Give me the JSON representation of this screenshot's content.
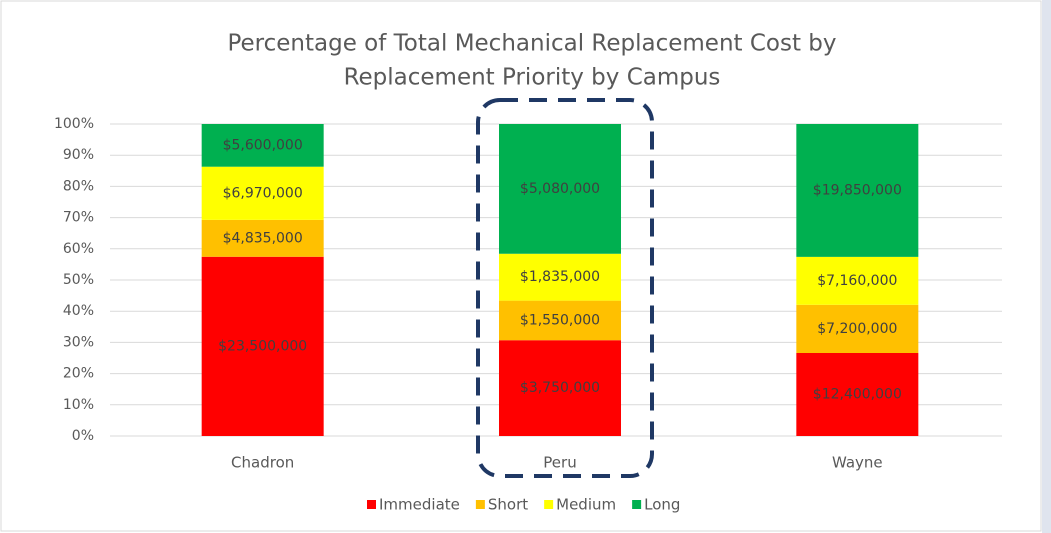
{
  "chart_data": {
    "type": "bar",
    "stacking": "percent",
    "title": [
      "Percentage of Total Mechanical Replacement Cost by",
      "Replacement Priority by Campus"
    ],
    "categories": [
      "Chadron",
      "Peru",
      "Wayne"
    ],
    "series": [
      {
        "name": "Immediate",
        "color": "#ff0000",
        "values": [
          23500000,
          3750000,
          12400000
        ],
        "value_labels": [
          "$23,500,000",
          "$3,750,000",
          "$12,400,000"
        ]
      },
      {
        "name": "Short",
        "color": "#ffc000",
        "values": [
          4835000,
          1550000,
          7200000
        ],
        "value_labels": [
          "$4,835,000",
          "$1,550,000",
          "$7,200,000"
        ]
      },
      {
        "name": "Medium",
        "color": "#ffff00",
        "values": [
          6970000,
          1835000,
          7160000
        ],
        "value_labels": [
          "$6,970,000",
          "$1,835,000",
          "$7,160,000"
        ]
      },
      {
        "name": "Long",
        "color": "#00b050",
        "values": [
          5600000,
          5080000,
          19850000
        ],
        "value_labels": [
          "$5,600,000",
          "$5,080,000",
          "$19,850,000"
        ]
      }
    ],
    "ylim": [
      0,
      100
    ],
    "yticks": [
      {
        "value": 0,
        "label": "0%"
      },
      {
        "value": 10,
        "label": "10%"
      },
      {
        "value": 20,
        "label": "20%"
      },
      {
        "value": 30,
        "label": "30%"
      },
      {
        "value": 40,
        "label": "40%"
      },
      {
        "value": 50,
        "label": "50%"
      },
      {
        "value": 60,
        "label": "60%"
      },
      {
        "value": 70,
        "label": "70%"
      },
      {
        "value": 80,
        "label": "80%"
      },
      {
        "value": 90,
        "label": "90%"
      },
      {
        "value": 100,
        "label": "100%"
      }
    ],
    "grid": true,
    "legend": "bottom"
  }
}
